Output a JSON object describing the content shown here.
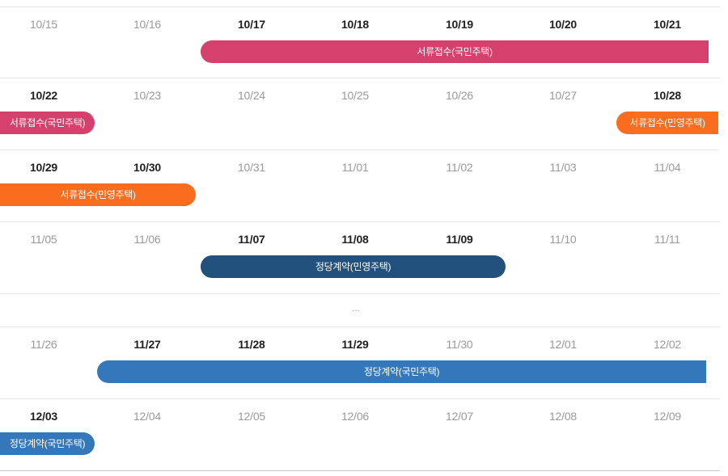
{
  "colors": {
    "document_pink": "#d6406c",
    "document_orange": "#fb6d1e",
    "contract_navy": "#22517e",
    "contract_blue": "#3478bb"
  },
  "weeks": [
    {
      "dates": [
        {
          "label": "10/15",
          "active": false
        },
        {
          "label": "10/16",
          "active": false
        },
        {
          "label": "10/17",
          "active": true
        },
        {
          "label": "10/18",
          "active": true
        },
        {
          "label": "10/19",
          "active": true
        },
        {
          "label": "10/20",
          "active": true
        },
        {
          "label": "10/21",
          "active": true
        }
      ],
      "events": [
        {
          "label": "서류접수(국민주택)",
          "color_key": "document_pink"
        }
      ]
    },
    {
      "dates": [
        {
          "label": "10/22",
          "active": true
        },
        {
          "label": "10/23",
          "active": false
        },
        {
          "label": "10/24",
          "active": false
        },
        {
          "label": "10/25",
          "active": false
        },
        {
          "label": "10/26",
          "active": false
        },
        {
          "label": "10/27",
          "active": false
        },
        {
          "label": "10/28",
          "active": true
        }
      ],
      "events": [
        {
          "label": "서류접수(국민주택)",
          "color_key": "document_pink"
        },
        {
          "label": "서류접수(민영주택)",
          "color_key": "document_orange"
        }
      ]
    },
    {
      "dates": [
        {
          "label": "10/29",
          "active": true
        },
        {
          "label": "10/30",
          "active": true
        },
        {
          "label": "10/31",
          "active": false
        },
        {
          "label": "11/01",
          "active": false
        },
        {
          "label": "11/02",
          "active": false
        },
        {
          "label": "11/03",
          "active": false
        },
        {
          "label": "11/04",
          "active": false
        }
      ],
      "events": [
        {
          "label": "서류접수(민영주택)",
          "color_key": "document_orange"
        }
      ]
    },
    {
      "dates": [
        {
          "label": "11/05",
          "active": false
        },
        {
          "label": "11/06",
          "active": false
        },
        {
          "label": "11/07",
          "active": true
        },
        {
          "label": "11/08",
          "active": true
        },
        {
          "label": "11/09",
          "active": true
        },
        {
          "label": "11/10",
          "active": false
        },
        {
          "label": "11/11",
          "active": false
        }
      ],
      "events": [
        {
          "label": "정당계약(민영주택)",
          "color_key": "contract_navy"
        }
      ]
    },
    {
      "dates": [
        {
          "label": "11/26",
          "active": false
        },
        {
          "label": "11/27",
          "active": true
        },
        {
          "label": "11/28",
          "active": true
        },
        {
          "label": "11/29",
          "active": true
        },
        {
          "label": "11/30",
          "active": false
        },
        {
          "label": "12/01",
          "active": false
        },
        {
          "label": "12/02",
          "active": false
        }
      ],
      "events": [
        {
          "label": "정당계약(국민주택)",
          "color_key": "contract_blue"
        }
      ]
    },
    {
      "dates": [
        {
          "label": "12/03",
          "active": true
        },
        {
          "label": "12/04",
          "active": false
        },
        {
          "label": "12/05",
          "active": false
        },
        {
          "label": "12/06",
          "active": false
        },
        {
          "label": "12/07",
          "active": false
        },
        {
          "label": "12/08",
          "active": false
        },
        {
          "label": "12/09",
          "active": false
        }
      ],
      "events": [
        {
          "label": "정당계약(국민주택)",
          "color_key": "contract_blue"
        }
      ]
    }
  ],
  "gap_marker": "..."
}
